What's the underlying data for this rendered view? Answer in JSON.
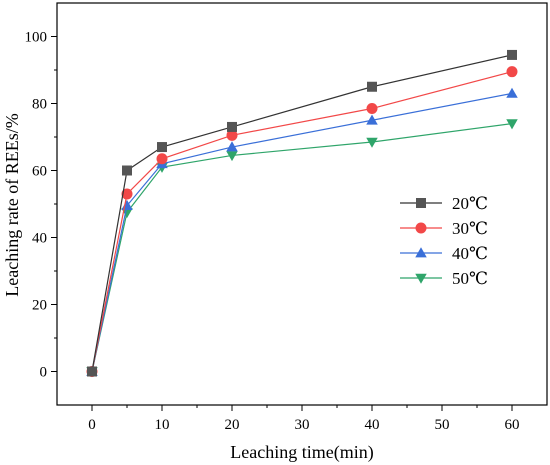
{
  "chart_data": {
    "type": "line",
    "title": "",
    "xlabel": "Leaching time(min)",
    "ylabel": "Leaching rate of REEs/%",
    "xlim": [
      -5,
      65
    ],
    "ylim": [
      -10,
      110
    ],
    "xticks": [
      0,
      10,
      20,
      30,
      40,
      50,
      60
    ],
    "yticks": [
      0,
      20,
      40,
      60,
      80,
      100
    ],
    "x": [
      0,
      5,
      10,
      20,
      40,
      60
    ],
    "legend_position": "right-middle",
    "grid": false,
    "series": [
      {
        "name": "20℃",
        "marker": "square",
        "color": "#555555",
        "line_color": "#333333",
        "values": [
          0,
          60,
          67,
          73,
          85,
          94.5
        ]
      },
      {
        "name": "30℃",
        "marker": "circle",
        "color": "#f24848",
        "line_color": "#f24848",
        "values": [
          0,
          53,
          63.5,
          70.5,
          78.5,
          89.5
        ]
      },
      {
        "name": "40℃",
        "marker": "triangle-up",
        "color": "#3a6fd8",
        "line_color": "#3a6fd8",
        "values": [
          0,
          49.5,
          62,
          67,
          75,
          83
        ]
      },
      {
        "name": "50℃",
        "marker": "triangle-down",
        "color": "#2fa56a",
        "line_color": "#2fa56a",
        "values": [
          0,
          47.5,
          61,
          64.5,
          68.5,
          74
        ]
      }
    ]
  }
}
